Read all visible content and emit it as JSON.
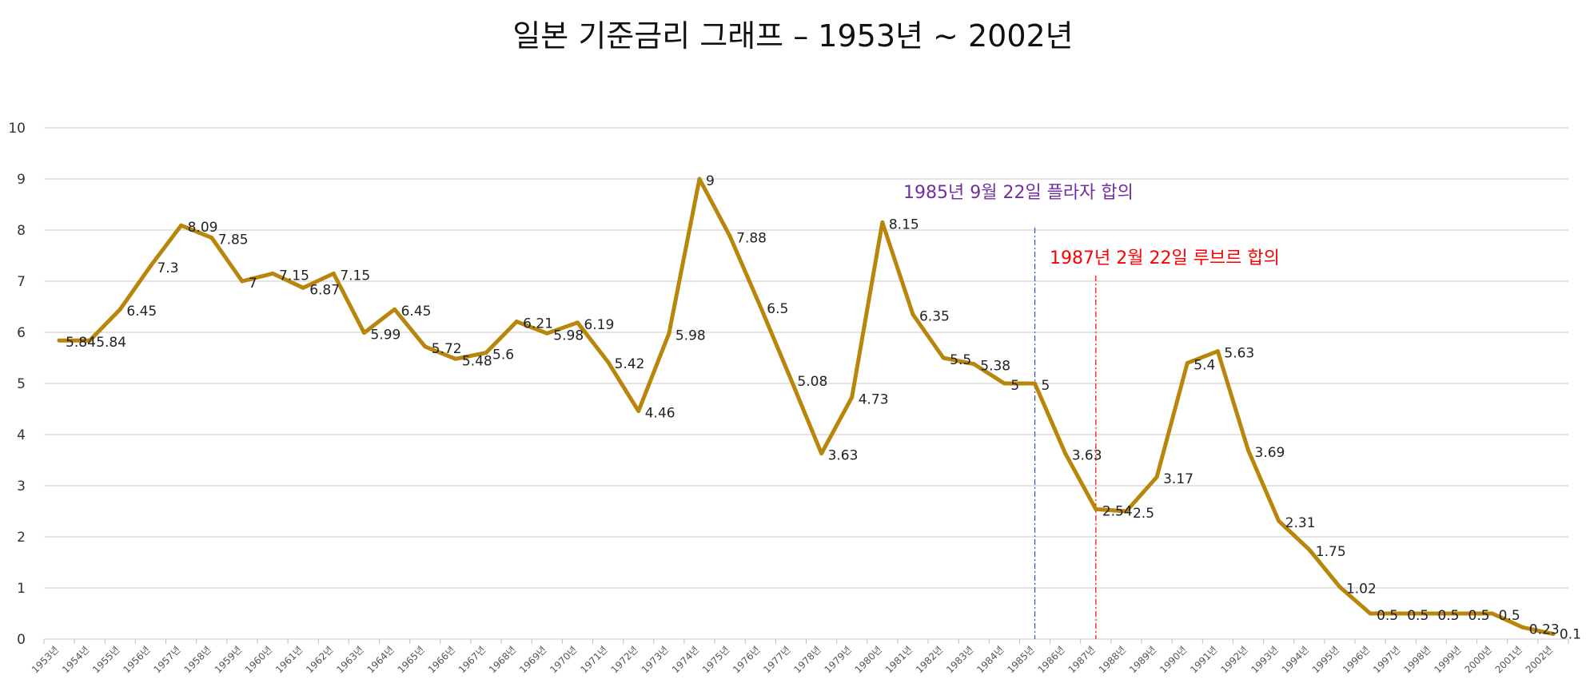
{
  "chart_data": {
    "type": "line",
    "title": "일본 기준금리 그래프 – 1953년 ~ 2002년",
    "xlabel": "",
    "ylabel": "",
    "ylim": [
      0,
      10
    ],
    "yticks": [
      "0",
      "1",
      "2",
      "3",
      "4",
      "5",
      "6",
      "7",
      "8",
      "9",
      "10"
    ],
    "grid": true,
    "legend": "none",
    "line_color": "#B8860B",
    "categories": [
      "1953년",
      "1954년",
      "1955년",
      "1956년",
      "1957년",
      "1958년",
      "1959년",
      "1960년",
      "1961년",
      "1962년",
      "1963년",
      "1964년",
      "1965년",
      "1966년",
      "1967년",
      "1968년",
      "1969년",
      "1970년",
      "1971년",
      "1972년",
      "1973년",
      "1974년",
      "1975년",
      "1976년",
      "1977년",
      "1978년",
      "1979년",
      "1980년",
      "1981년",
      "1982년",
      "1983년",
      "1984년",
      "1985년",
      "1986년",
      "1987년",
      "1988년",
      "1989년",
      "1990년",
      "1991년",
      "1992년",
      "1993년",
      "1994년",
      "1995년",
      "1996년",
      "1997년",
      "1998년",
      "1999년",
      "2000년",
      "2001년",
      "2002년"
    ],
    "values": [
      5.84,
      5.84,
      6.45,
      7.3,
      8.09,
      7.85,
      7.0,
      7.15,
      6.87,
      7.15,
      5.99,
      6.45,
      5.72,
      5.48,
      5.6,
      6.21,
      5.98,
      6.19,
      5.42,
      4.46,
      5.98,
      9.0,
      7.88,
      6.5,
      5.08,
      3.63,
      4.73,
      8.15,
      6.35,
      5.5,
      5.38,
      5.0,
      5.0,
      3.63,
      2.54,
      2.5,
      3.17,
      5.4,
      5.63,
      3.69,
      2.31,
      1.75,
      1.02,
      0.5,
      0.5,
      0.5,
      0.5,
      0.5,
      0.23,
      0.1
    ],
    "data_labels": [
      "5.84",
      "5.84",
      "6.45",
      "7.3",
      "8.09",
      "7.85",
      "7",
      "7.15",
      "6.87",
      "7.15",
      "5.99",
      "6.45",
      "5.72",
      "5.48",
      "5.6",
      "6.21",
      "5.98",
      "6.19",
      "5.42",
      "4.46",
      "5.98",
      "9",
      "7.88",
      "6.5",
      "5.08",
      "3.63",
      "4.73",
      "8.15",
      "6.35",
      "5.5",
      "5.38",
      "5",
      "5",
      "3.63",
      "2.54",
      "2.5",
      "3.17",
      "5.4",
      "5.63",
      "3.69",
      "2.31",
      "1.75",
      "1.02",
      "0.5",
      "0.5",
      "0.5",
      "0.5",
      "0.5",
      "0.23",
      "0.1"
    ],
    "annotations": [
      {
        "text": "1985년 9월 22일 플라자 합의",
        "x": "1985년",
        "color": "#7030A0",
        "line_color": "#3050C0"
      },
      {
        "text": "1987년 2월 22일 루브르 합의",
        "x": "1987년",
        "color": "#FF0000",
        "line_color": "#FF0000"
      }
    ]
  }
}
